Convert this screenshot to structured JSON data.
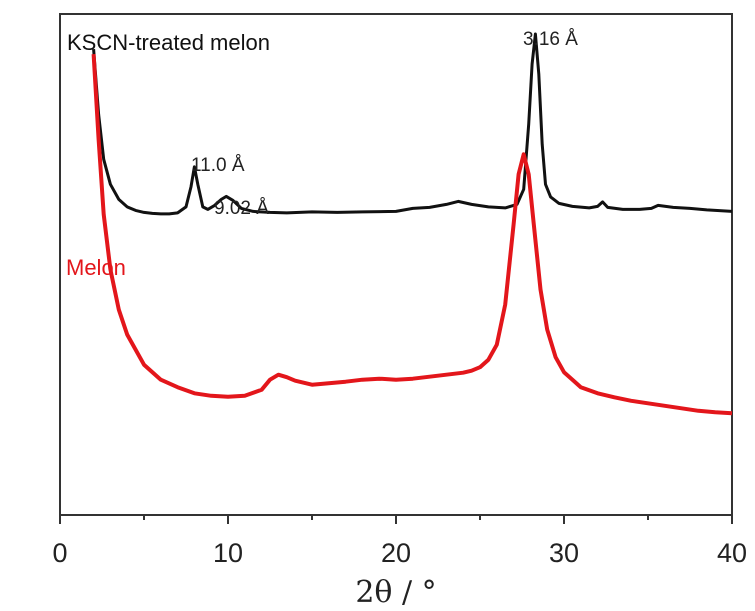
{
  "chart_data": {
    "type": "line",
    "title": "",
    "xlabel": "2θ / °",
    "ylabel": "",
    "xlim": [
      0,
      40
    ],
    "ylim": [
      0,
      100
    ],
    "x_ticks": [
      0,
      10,
      20,
      30,
      40
    ],
    "grid": false,
    "legend": "none",
    "series": [
      {
        "name": "KSCN-treated melon",
        "color": "#111111",
        "points": [
          [
            2.0,
            93
          ],
          [
            2.3,
            80
          ],
          [
            2.6,
            71
          ],
          [
            3.0,
            66
          ],
          [
            3.5,
            63
          ],
          [
            4.0,
            61.5
          ],
          [
            4.5,
            60.8
          ],
          [
            5.0,
            60.4
          ],
          [
            5.5,
            60.2
          ],
          [
            6.0,
            60.1
          ],
          [
            6.5,
            60.1
          ],
          [
            7.0,
            60.3
          ],
          [
            7.5,
            61.5
          ],
          [
            7.8,
            65.5
          ],
          [
            8.0,
            69.5
          ],
          [
            8.2,
            66
          ],
          [
            8.5,
            61.5
          ],
          [
            8.8,
            61
          ],
          [
            9.2,
            61.8
          ],
          [
            9.6,
            63
          ],
          [
            9.9,
            63.6
          ],
          [
            10.3,
            62.8
          ],
          [
            10.8,
            61.2
          ],
          [
            11.5,
            60.6
          ],
          [
            12.5,
            60.4
          ],
          [
            13.5,
            60.3
          ],
          [
            15.0,
            60.5
          ],
          [
            16.5,
            60.4
          ],
          [
            18.0,
            60.5
          ],
          [
            20.0,
            60.6
          ],
          [
            21.0,
            61.2
          ],
          [
            22.0,
            61.4
          ],
          [
            23.0,
            62
          ],
          [
            23.7,
            62.6
          ],
          [
            24.5,
            62
          ],
          [
            25.5,
            61.5
          ],
          [
            26.5,
            61.3
          ],
          [
            27.2,
            62
          ],
          [
            27.6,
            65
          ],
          [
            27.9,
            78
          ],
          [
            28.1,
            90
          ],
          [
            28.3,
            96
          ],
          [
            28.5,
            88
          ],
          [
            28.7,
            74
          ],
          [
            28.9,
            66
          ],
          [
            29.2,
            63.5
          ],
          [
            29.7,
            62.2
          ],
          [
            30.5,
            61.6
          ],
          [
            31.5,
            61.3
          ],
          [
            32.0,
            61.6
          ],
          [
            32.3,
            62.5
          ],
          [
            32.6,
            61.4
          ],
          [
            33.5,
            61
          ],
          [
            34.5,
            61
          ],
          [
            35.2,
            61.2
          ],
          [
            35.6,
            61.8
          ],
          [
            36.5,
            61.4
          ],
          [
            37.5,
            61.2
          ],
          [
            38.5,
            60.9
          ],
          [
            40.0,
            60.6
          ]
        ]
      },
      {
        "name": "Melon",
        "color": "#e3161b",
        "points": [
          [
            2.0,
            92
          ],
          [
            2.3,
            75
          ],
          [
            2.6,
            60
          ],
          [
            3.0,
            49
          ],
          [
            3.5,
            41
          ],
          [
            4.0,
            36
          ],
          [
            5.0,
            30
          ],
          [
            6.0,
            27
          ],
          [
            7.0,
            25.5
          ],
          [
            8.0,
            24.3
          ],
          [
            9.0,
            23.8
          ],
          [
            10.0,
            23.6
          ],
          [
            11.0,
            23.8
          ],
          [
            12.0,
            25
          ],
          [
            12.5,
            27
          ],
          [
            13.0,
            28
          ],
          [
            13.5,
            27.5
          ],
          [
            14.0,
            26.8
          ],
          [
            15.0,
            26
          ],
          [
            16.0,
            26.3
          ],
          [
            17.0,
            26.6
          ],
          [
            18.0,
            27
          ],
          [
            19.0,
            27.2
          ],
          [
            20.0,
            27
          ],
          [
            21.0,
            27.2
          ],
          [
            22.0,
            27.6
          ],
          [
            23.0,
            28
          ],
          [
            24.0,
            28.4
          ],
          [
            24.5,
            28.8
          ],
          [
            25.0,
            29.5
          ],
          [
            25.5,
            31
          ],
          [
            26.0,
            34
          ],
          [
            26.5,
            42
          ],
          [
            27.0,
            58
          ],
          [
            27.3,
            68
          ],
          [
            27.6,
            72
          ],
          [
            27.9,
            68
          ],
          [
            28.2,
            58
          ],
          [
            28.6,
            45
          ],
          [
            29.0,
            37
          ],
          [
            29.5,
            31.5
          ],
          [
            30.0,
            28.5
          ],
          [
            31.0,
            25.5
          ],
          [
            32.0,
            24.3
          ],
          [
            33.0,
            23.5
          ],
          [
            34.0,
            22.8
          ],
          [
            35.0,
            22.3
          ],
          [
            36.0,
            21.8
          ],
          [
            37.0,
            21.3
          ],
          [
            38.0,
            20.8
          ],
          [
            39.0,
            20.5
          ],
          [
            40.0,
            20.3
          ]
        ]
      }
    ],
    "series_labels": [
      {
        "text": "KSCN-treated melon",
        "series": 0
      },
      {
        "text": "Melon",
        "series": 1
      }
    ],
    "annotations": [
      {
        "text": "11.0 Å",
        "x": 8.0
      },
      {
        "text": "9.02 Å",
        "x": 9.9
      },
      {
        "text": "3.16 Å",
        "x": 28.3
      }
    ]
  }
}
